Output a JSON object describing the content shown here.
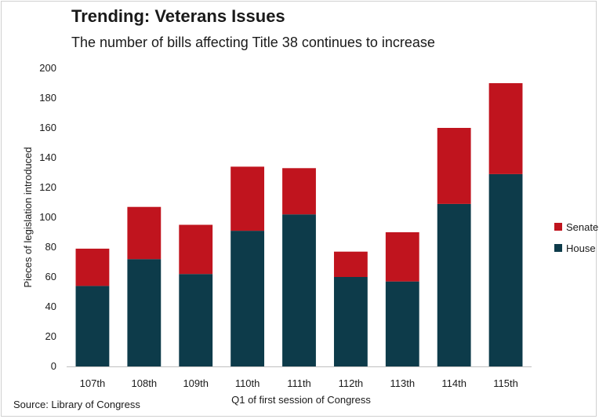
{
  "chart_data": {
    "type": "bar",
    "stacked": true,
    "title": "Trending: Veterans Issues",
    "subtitle": "The number of bills affecting Title 38 continues to increase",
    "xlabel": "Q1 of first session of Congress",
    "ylabel": "Pieces of legislation introduced",
    "source": "Source: Library of Congress",
    "ylim": [
      0,
      200
    ],
    "yticks": [
      0,
      20,
      40,
      60,
      80,
      100,
      120,
      140,
      160,
      180,
      200
    ],
    "grid": false,
    "legend_position": "right",
    "categories": [
      "107th",
      "108th",
      "109th",
      "110th",
      "111th",
      "112th",
      "113th",
      "114th",
      "115th"
    ],
    "series": [
      {
        "name": "House",
        "color": "#0d3b4a",
        "values": [
          54,
          72,
          62,
          91,
          102,
          60,
          57,
          109,
          129
        ]
      },
      {
        "name": "Senate",
        "color": "#c0141e",
        "values": [
          25,
          35,
          33,
          43,
          31,
          17,
          33,
          51,
          61
        ]
      }
    ],
    "legend_order": [
      "Senate",
      "House"
    ]
  }
}
